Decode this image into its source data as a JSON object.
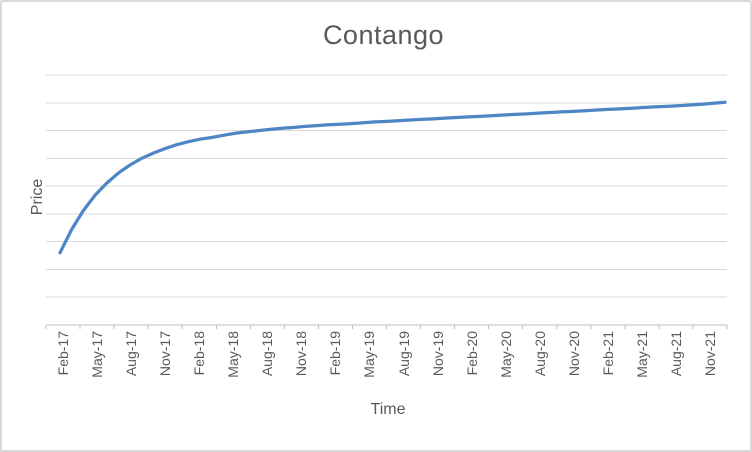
{
  "chart_data": {
    "type": "line",
    "title": "Contango",
    "xlabel": "Time",
    "ylabel": "Price",
    "x_tick_labels": [
      "Feb-17",
      "May-17",
      "Aug-17",
      "Nov-17",
      "Feb-18",
      "May-18",
      "Aug-18",
      "Nov-18",
      "Feb-19",
      "May-19",
      "Aug-19",
      "Nov-19",
      "Feb-20",
      "May-20",
      "Aug-20",
      "Nov-20",
      "Feb-21",
      "May-21",
      "Aug-21",
      "Nov-21"
    ],
    "x_start": "Feb-17",
    "x_end": "Nov-21",
    "x_interval": "monthly",
    "series": [
      {
        "name": "Price",
        "color": "#4E86C5",
        "values": [
          26.0,
          34.4,
          41.2,
          46.7,
          51.1,
          54.7,
          57.6,
          60.0,
          61.9,
          63.5,
          64.9,
          66.0,
          66.9,
          67.5,
          68.3,
          69.0,
          69.5,
          70.0,
          70.4,
          70.8,
          71.1,
          71.5,
          71.8,
          72.1,
          72.3,
          72.5,
          72.8,
          73.1,
          73.3,
          73.5,
          73.8,
          74.0,
          74.2,
          74.5,
          74.7,
          74.9,
          75.1,
          75.3,
          75.6,
          75.8,
          76.0,
          76.3,
          76.5,
          76.7,
          76.9,
          77.1,
          77.4,
          77.6,
          77.8,
          78.0,
          78.3,
          78.5,
          78.7,
          78.9,
          79.2,
          79.5,
          79.8,
          80.2
        ]
      }
    ],
    "ylim": [
      0,
      90
    ],
    "gridline_step": 10,
    "y_tick_labels_visible": false,
    "grid": "horizontal",
    "legend": "none"
  },
  "colors": {
    "background": "#FFFFFF",
    "border": "#D9D9D9",
    "gridline": "#D9D9D9",
    "axis": "#BFBFBF",
    "text": "#595959"
  }
}
